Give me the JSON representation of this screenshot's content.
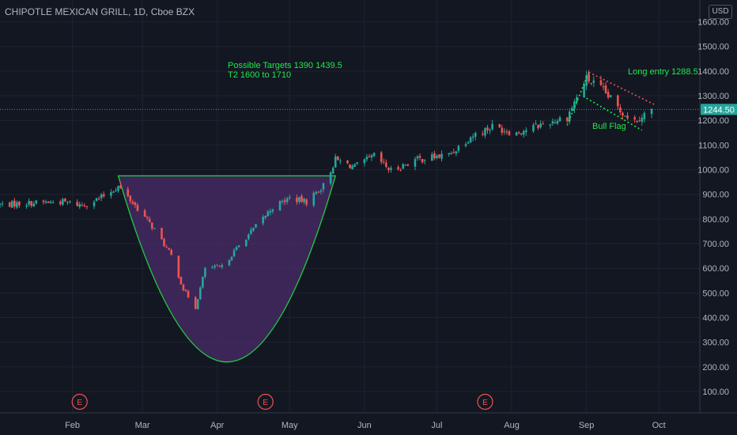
{
  "header": {
    "title": "CHIPOTLE MEXICAN GRILL, 1D, Cboe BZX",
    "currency": "USD"
  },
  "price_scale": {
    "ticks": [
      "1600.00",
      "1500.00",
      "1400.00",
      "1300.00",
      "1200.00",
      "1100.00",
      "1000.00",
      "900.00",
      "800.00",
      "700.00",
      "600.00",
      "500.00",
      "400.00",
      "300.00",
      "200.00",
      "100.00"
    ],
    "last_price": "1244.50"
  },
  "annotations": {
    "targets_line1": "Possible Targets  1390    1439.5",
    "targets_line2": "T2  1600 to 1710",
    "long_entry": "Long entry 1288.5",
    "bull_flag": "Bull Flag"
  },
  "earnings_marker": "E",
  "colors": {
    "up": "#26a69a",
    "down": "#ef5350",
    "pattern_line": "#22cc44",
    "pattern_fill": "#4a2c6a",
    "last_price_bg": "#26a69a",
    "flag_upper": "#ef5350",
    "flag_lower": "#22e64a"
  },
  "chart_data": {
    "type": "candlestick",
    "title": "CHIPOTLE MEXICAN GRILL, 1D, Cboe BZX",
    "ylim": [
      40,
      1650
    ],
    "x_tick_labels": [
      "Feb",
      "Mar",
      "Apr",
      "May",
      "Jun",
      "Jul",
      "Aug",
      "Sep",
      "Oct"
    ],
    "earnings_months": [
      "Feb",
      "Apr",
      "Jul"
    ],
    "close_path": [
      [
        "2020-01-02",
        858
      ],
      [
        "2020-01-15",
        865
      ],
      [
        "2020-01-28",
        870
      ],
      [
        "2020-02-05",
        856
      ],
      [
        "2020-02-12",
        882
      ],
      [
        "2020-02-20",
        932
      ],
      [
        "2020-02-27",
        855
      ],
      [
        "2020-03-06",
        758
      ],
      [
        "2020-03-13",
        650
      ],
      [
        "2020-03-18",
        515
      ],
      [
        "2020-03-23",
        440
      ],
      [
        "2020-03-27",
        600
      ],
      [
        "2020-04-03",
        605
      ],
      [
        "2020-04-09",
        680
      ],
      [
        "2020-04-17",
        770
      ],
      [
        "2020-04-24",
        848
      ],
      [
        "2020-05-01",
        885
      ],
      [
        "2020-05-08",
        870
      ],
      [
        "2020-05-15",
        935
      ],
      [
        "2020-05-20",
        1040
      ],
      [
        "2020-05-28",
        1010
      ],
      [
        "2020-06-05",
        1055
      ],
      [
        "2020-06-12",
        995
      ],
      [
        "2020-06-22",
        1040
      ],
      [
        "2020-07-06",
        1060
      ],
      [
        "2020-07-15",
        1135
      ],
      [
        "2020-07-24",
        1175
      ],
      [
        "2020-08-03",
        1150
      ],
      [
        "2020-08-14",
        1185
      ],
      [
        "2020-08-24",
        1215
      ],
      [
        "2020-09-01",
        1370
      ],
      [
        "2020-09-08",
        1320
      ],
      [
        "2020-09-15",
        1240
      ],
      [
        "2020-09-21",
        1200
      ],
      [
        "2020-09-28",
        1244.5
      ]
    ],
    "last_price": 1244.5,
    "cup_and_handle": {
      "rim": 975,
      "bottom": 220
    },
    "long_entry": 1288.5,
    "targets": [
      1390,
      1439.5
    ],
    "target2_range": [
      1600,
      1710
    ]
  }
}
